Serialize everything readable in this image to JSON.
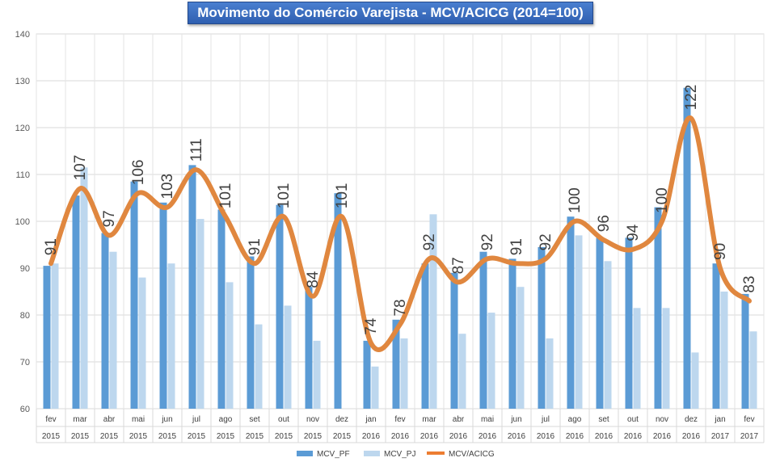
{
  "chart_data": {
    "type": "bar",
    "title": "Movimento do Comércio Varejista - MCV/ACICG (2014=100)",
    "months": [
      "fev",
      "mar",
      "abr",
      "mai",
      "jun",
      "jul",
      "ago",
      "set",
      "out",
      "nov",
      "dez",
      "jan",
      "fev",
      "mar",
      "abr",
      "mai",
      "jun",
      "jul",
      "ago",
      "set",
      "out",
      "nov",
      "dez",
      "jan",
      "fev"
    ],
    "years": [
      "2015",
      "2015",
      "2015",
      "2015",
      "2015",
      "2015",
      "2015",
      "2015",
      "2015",
      "2015",
      "2015",
      "2016",
      "2016",
      "2016",
      "2016",
      "2016",
      "2016",
      "2016",
      "2016",
      "2016",
      "2016",
      "2016",
      "2016",
      "2017",
      "2017"
    ],
    "ylim": [
      60,
      140
    ],
    "yticks": [
      60,
      70,
      80,
      90,
      100,
      110,
      120,
      130,
      140
    ],
    "grid": true,
    "legend_position": "bottom",
    "series": [
      {
        "name": "MCV_PF",
        "type": "bar",
        "color": "#5b9bd5",
        "values": [
          90.5,
          105.5,
          97.5,
          108.5,
          104,
          112,
          102.5,
          92.5,
          103.5,
          86,
          106,
          74.5,
          79,
          91,
          89,
          93.5,
          92,
          94.5,
          101,
          96.5,
          96.5,
          103,
          128.5,
          91,
          84.5
        ]
      },
      {
        "name": "MCV_PJ",
        "type": "bar",
        "color": "#bdd7ee",
        "values": [
          91,
          111.5,
          93.5,
          88,
          91,
          100.5,
          87,
          78,
          82,
          74.5,
          60,
          69,
          75,
          101.5,
          76,
          80.5,
          86,
          75,
          97,
          91.5,
          81.5,
          81.5,
          72,
          85,
          76.5
        ]
      },
      {
        "name": "MCV/ACICG",
        "type": "line",
        "color": "#ed7d31",
        "values": [
          91,
          107,
          97,
          106,
          103,
          111,
          101,
          91,
          101,
          84,
          101,
          74,
          78,
          92,
          87,
          92,
          91,
          92,
          100,
          96,
          94,
          100,
          122,
          90,
          83
        ],
        "labels": [
          "91",
          "107",
          "97",
          "106",
          "103",
          "111",
          "101",
          "91",
          "101",
          "84",
          "101",
          "74",
          "78",
          "92",
          "87",
          "92",
          "91",
          "92",
          "100",
          "96",
          "94",
          "100",
          "122",
          "90",
          "83"
        ]
      }
    ]
  }
}
